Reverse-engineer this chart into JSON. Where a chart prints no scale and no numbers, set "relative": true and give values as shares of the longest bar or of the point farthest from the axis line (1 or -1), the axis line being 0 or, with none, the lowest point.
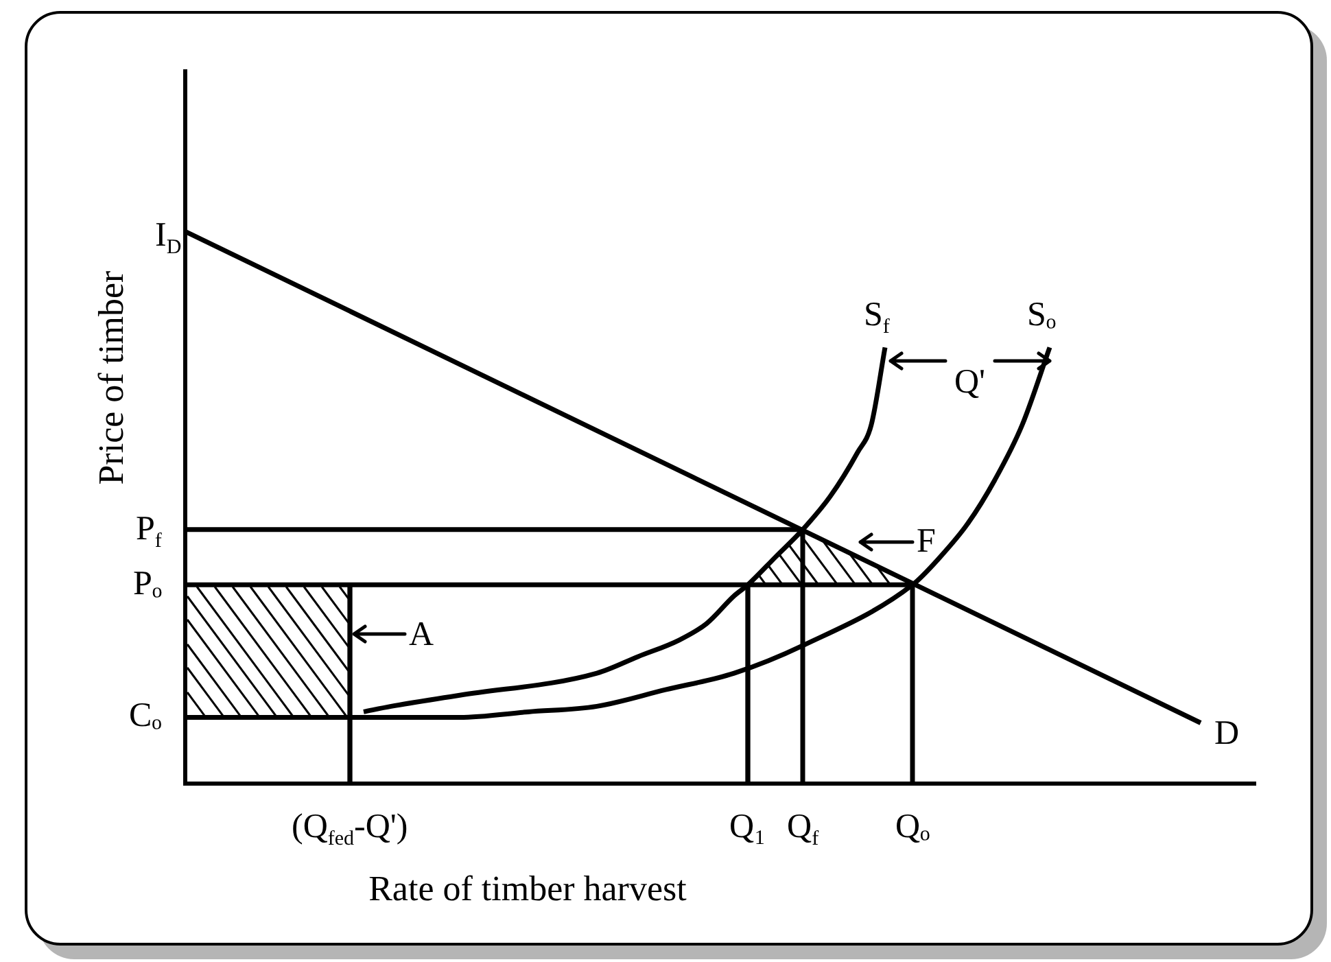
{
  "chart_data": {
    "type": "line",
    "relative": true,
    "xlabel": "Rate of timber harvest",
    "ylabel": "Price of timber",
    "categories": [
      null,
      null,
      null,
      null,
      null,
      null,
      null,
      null,
      null,
      null,
      null,
      null,
      "(Q$_{fed}$-Q')",
      null,
      null,
      null,
      null,
      null,
      null,
      null,
      null,
      null,
      null,
      null,
      null,
      null,
      null,
      null,
      null,
      null,
      null,
      null,
      null,
      null,
      null,
      null,
      null,
      null,
      null,
      null,
      null,
      "Q₁",
      null,
      null,
      null,
      "Q$_{f}$",
      null,
      null,
      null,
      null,
      null,
      null,
      null,
      "Qₒ",
      null,
      null,
      null,
      null,
      null,
      null,
      null,
      null,
      null,
      null,
      null,
      null,
      null,
      null,
      null,
      null,
      null,
      null,
      null,
      null,
      null,
      null,
      null,
      null,
      null
    ],
    "series": [
      {
        "name": "D",
        "color": "#000000",
        "values": [
          1,
          null,
          null,
          null,
          null,
          null,
          null,
          null,
          null,
          null,
          null,
          null,
          null,
          null,
          null,
          null,
          null,
          null,
          null,
          null,
          null,
          null,
          null,
          null,
          null,
          null,
          null,
          null,
          null,
          null,
          null,
          null,
          null,
          null,
          null,
          null,
          null,
          null,
          null,
          null,
          null,
          null,
          null,
          null,
          null,
          null,
          null,
          null,
          null,
          null,
          null,
          null,
          null,
          null,
          null,
          null,
          null,
          null,
          null,
          null,
          null,
          null,
          null,
          null,
          null,
          null,
          null,
          null,
          null,
          null,
          null,
          null,
          null,
          null,
          0.11,
          null,
          null,
          null,
          null
        ]
      },
      {
        "name": "S$_{f}$",
        "color": "#000000",
        "values": [
          null,
          null,
          null,
          null,
          null,
          null,
          null,
          null,
          null,
          null,
          null,
          null,
          null,
          0.13,
          null,
          0.14,
          null,
          null,
          null,
          null,
          0.16,
          null,
          null,
          null,
          null,
          null,
          null,
          null,
          null,
          null,
          0.2,
          null,
          null,
          0.23,
          null,
          null,
          0.26,
          null,
          0.29,
          null,
          0.34,
          0.36,
          null,
          0.41,
          null,
          0.46,
          null,
          0.52,
          null,
          0.6,
          0.65,
          0.79,
          null,
          null,
          null,
          null,
          null,
          null,
          null,
          null,
          null,
          null,
          null,
          null,
          null,
          null,
          null,
          null,
          null,
          null,
          null,
          null,
          null,
          null,
          null,
          null,
          null,
          null,
          null
        ]
      },
      {
        "name": "Sₒ",
        "color": "#000000",
        "values": [
          0.12,
          null,
          null,
          null,
          null,
          null,
          null,
          null,
          null,
          null,
          null,
          null,
          0.12,
          null,
          null,
          null,
          null,
          null,
          null,
          null,
          0.12,
          null,
          null,
          null,
          null,
          0.13,
          null,
          null,
          null,
          null,
          0.14,
          null,
          null,
          null,
          null,
          0.17,
          null,
          null,
          null,
          null,
          0.2,
          null,
          null,
          null,
          null,
          0.25,
          null,
          null,
          null,
          null,
          null,
          null,
          null,
          0.36,
          null,
          0.41,
          null,
          0.47,
          null,
          0.55,
          null,
          0.65,
          null,
          0.79,
          null,
          null,
          null,
          null,
          null,
          null,
          null,
          null,
          null,
          null,
          null,
          null,
          null,
          null,
          null
        ]
      },
      {
        "type": "step",
        "name": "P$_{f}$",
        "color": "#000000",
        "values": [
          0.46,
          null,
          null,
          null,
          null,
          null,
          null,
          null,
          null,
          null,
          null,
          null,
          null,
          null,
          null,
          null,
          null,
          null,
          null,
          null,
          null,
          null,
          null,
          null,
          null,
          null,
          null,
          null,
          null,
          null,
          null,
          null,
          null,
          null,
          null,
          null,
          null,
          null,
          null,
          null,
          null,
          null,
          null,
          null,
          null,
          0,
          null,
          null,
          null,
          null,
          null,
          null,
          null,
          null,
          null,
          null,
          null,
          null,
          null,
          null,
          null,
          null,
          null,
          null,
          null,
          null,
          null,
          null,
          null,
          null,
          null,
          null,
          null,
          null,
          null,
          null,
          null,
          null,
          null
        ]
      },
      {
        "type": "step",
        "name": "Pₒ",
        "color": "#000000",
        "values": [
          0.36,
          null,
          null,
          null,
          null,
          null,
          null,
          null,
          null,
          null,
          null,
          null,
          null,
          null,
          null,
          null,
          null,
          null,
          null,
          null,
          null,
          null,
          null,
          null,
          null,
          null,
          null,
          null,
          null,
          null,
          null,
          null,
          null,
          null,
          null,
          null,
          null,
          null,
          null,
          null,
          null,
          null,
          null,
          null,
          null,
          null,
          null,
          null,
          null,
          null,
          null,
          null,
          null,
          0,
          null,
          null,
          null,
          null,
          null,
          null,
          null,
          null,
          null,
          null,
          null,
          null,
          null,
          null,
          null,
          null,
          null,
          null,
          null,
          null,
          null,
          null,
          null,
          null,
          null
        ]
      },
      {
        "type": "bar",
        "color": "#000000",
        "values": [
          null,
          null,
          null,
          null,
          null,
          null,
          null,
          null,
          null,
          null,
          null,
          null,
          0.36,
          null,
          null,
          null,
          null,
          null,
          null,
          null,
          null,
          null,
          null,
          null,
          null,
          null,
          null,
          null,
          null,
          null,
          null,
          null,
          null,
          null,
          null,
          null,
          null,
          null,
          null,
          null,
          null,
          0.36,
          null,
          null,
          null,
          null,
          null,
          null,
          null,
          null,
          null,
          null,
          null,
          null,
          null,
          null,
          null,
          null,
          null,
          null,
          null,
          null,
          null,
          null,
          null,
          null,
          null,
          null,
          null,
          null,
          null,
          null,
          null,
          null,
          null,
          null,
          null,
          null,
          null
        ]
      }
    ],
    "annotations": [
      "I$_{D}$",
      "Cₒ",
      "A",
      "F",
      "Q'"
    ]
  }
}
